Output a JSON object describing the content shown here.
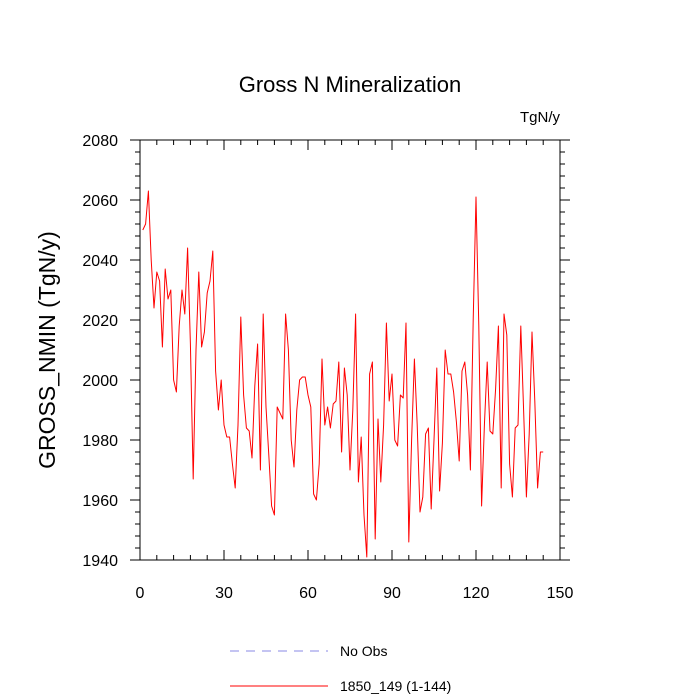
{
  "chart_data": {
    "type": "line",
    "title": "Gross N Mineralization",
    "units_label": "TgN/y",
    "ylabel": "GROSS_NMIN  (TgN/y)",
    "xlabel": "",
    "xlim": [
      0,
      150
    ],
    "ylim": [
      1940,
      2080
    ],
    "xticks": [
      0,
      30,
      60,
      90,
      120,
      150
    ],
    "yticks": [
      1940,
      1960,
      1980,
      2000,
      2020,
      2040,
      2060,
      2080
    ],
    "xtick_labels": [
      "0",
      "30",
      "60",
      "90",
      "120",
      "150"
    ],
    "ytick_labels": [
      "1940",
      "1960",
      "1980",
      "2000",
      "2020",
      "2040",
      "2060",
      "2080"
    ],
    "x_minor_step": 6,
    "y_minor_step": 4,
    "grid": false,
    "legend_placement": "bottom",
    "legend": [
      {
        "label": "No Obs",
        "color": "#8a8ae6",
        "dash": "dashed"
      },
      {
        "label": "1850_149 (1-144)",
        "color": "#ff0000",
        "dash": "solid"
      }
    ],
    "series": [
      {
        "name": "1850_149 (1-144)",
        "color": "#ff0000",
        "x": [
          1,
          2,
          3,
          4,
          5,
          6,
          7,
          8,
          9,
          10,
          11,
          12,
          13,
          14,
          15,
          16,
          17,
          18,
          19,
          20,
          21,
          22,
          23,
          24,
          25,
          26,
          27,
          28,
          29,
          30,
          31,
          32,
          33,
          34,
          35,
          36,
          37,
          38,
          39,
          40,
          41,
          42,
          43,
          44,
          45,
          46,
          47,
          48,
          49,
          50,
          51,
          52,
          53,
          54,
          55,
          56,
          57,
          58,
          59,
          60,
          61,
          62,
          63,
          64,
          65,
          66,
          67,
          68,
          69,
          70,
          71,
          72,
          73,
          74,
          75,
          76,
          77,
          78,
          79,
          80,
          81,
          82,
          83,
          84,
          85,
          86,
          87,
          88,
          89,
          90,
          91,
          92,
          93,
          94,
          95,
          96,
          97,
          98,
          99,
          100,
          101,
          102,
          103,
          104,
          105,
          106,
          107,
          108,
          109,
          110,
          111,
          112,
          113,
          114,
          115,
          116,
          117,
          118,
          119,
          120,
          121,
          122,
          123,
          124,
          125,
          126,
          127,
          128,
          129,
          130,
          131,
          132,
          133,
          134,
          135,
          136,
          137,
          138,
          139,
          140,
          141,
          142,
          143,
          144
        ],
        "values": [
          2050,
          2052,
          2063,
          2040,
          2024,
          2036,
          2033,
          2011,
          2037,
          2027,
          2030,
          2000,
          1996,
          2018,
          2030,
          2022,
          2044,
          2012,
          1967,
          2010,
          2036,
          2011,
          2016,
          2029,
          2033,
          2043,
          2003,
          1990,
          2000,
          1985,
          1981,
          1981,
          1972,
          1964,
          1985,
          2021,
          1995,
          1984,
          1983,
          1974,
          1998,
          2012,
          1970,
          2022,
          1991,
          1975,
          1958,
          1955,
          1991,
          1989,
          1987,
          2022,
          2010,
          1980,
          1971,
          1990,
          2000,
          2001,
          2001,
          1995,
          1991,
          1962,
          1960,
          1972,
          2007,
          1985,
          1991,
          1984,
          1992,
          1993,
          2006,
          1976,
          2004,
          1995,
          1970,
          1990,
          2022,
          1966,
          1981,
          1955,
          1941,
          2002,
          2006,
          1947,
          1987,
          1966,
          1985,
          2019,
          1993,
          2002,
          1980,
          1978,
          1995,
          1994,
          2019,
          1946,
          1980,
          2007,
          1985,
          1956,
          1961,
          1982,
          1984,
          1957,
          1980,
          2004,
          1963,
          1979,
          2010,
          2002,
          2002,
          1996,
          1986,
          1973,
          2003,
          2006,
          1995,
          1970,
          2020,
          2061,
          2018,
          1958,
          1985,
          2006,
          1983,
          1982,
          1997,
          2018,
          1964,
          2022,
          2015,
          1972,
          1961,
          1984,
          1985,
          2018,
          1990,
          1961,
          1982,
          2016,
          1993,
          1964,
          1976,
          1976
        ]
      },
      {
        "name": "No Obs",
        "color": "#8a8ae6",
        "x": [],
        "values": []
      }
    ]
  }
}
